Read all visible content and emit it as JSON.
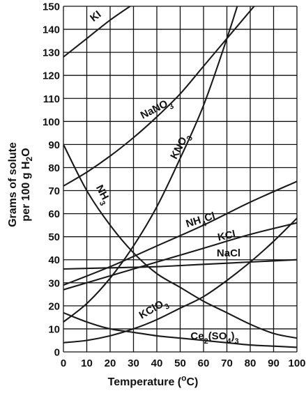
{
  "chart_data": {
    "type": "line",
    "title": "",
    "xlabel": "Temperature (",
    "xlabel_unit": "o",
    "xlabel_tail": "C)",
    "ylabel_line1": "Grams of solute",
    "ylabel_line2_prefix": "per 100 g H",
    "ylabel_line2_sub": "2",
    "ylabel_line2_suffix": "O",
    "xlim": [
      0,
      100
    ],
    "ylim": [
      0,
      150
    ],
    "x_ticks": [
      0,
      10,
      20,
      30,
      40,
      50,
      60,
      70,
      80,
      90,
      100
    ],
    "y_ticks": [
      0,
      10,
      20,
      30,
      40,
      50,
      60,
      70,
      80,
      90,
      100,
      110,
      120,
      130,
      140,
      150
    ],
    "grid": true,
    "line_color": "#1a1a1a",
    "series": [
      {
        "name": "KI",
        "label_main": "KI",
        "label_sub": "",
        "label_tail": "",
        "x": [
          0,
          10,
          20,
          30
        ],
        "y": [
          128,
          136,
          144,
          151
        ]
      },
      {
        "name": "NaNO3",
        "label_main": "NaNO",
        "label_sub": "3",
        "label_tail": "",
        "x": [
          0,
          10,
          20,
          30,
          40,
          50,
          60,
          70,
          80,
          90
        ],
        "y": [
          72,
          78,
          85,
          93,
          102,
          112,
          124,
          136,
          148,
          160
        ]
      },
      {
        "name": "KNO3",
        "label_main": "KNO",
        "label_sub": "3",
        "label_tail": "",
        "x": [
          0,
          10,
          20,
          30,
          40,
          50,
          60,
          70,
          80
        ],
        "y": [
          13,
          21,
          32,
          46,
          63,
          84,
          107,
          136,
          168
        ]
      },
      {
        "name": "NH3",
        "label_main": "NH",
        "label_sub": "3",
        "label_tail": "",
        "x": [
          0,
          10,
          20,
          30,
          40,
          50,
          60,
          70,
          80,
          90,
          100
        ],
        "y": [
          90,
          70,
          55,
          43,
          34,
          28,
          22,
          17,
          12,
          8,
          6
        ]
      },
      {
        "name": "NH4Cl",
        "label_main": "NH",
        "label_sub": "4",
        "label_tail": "Cl",
        "x": [
          0,
          20,
          40,
          60,
          80,
          100
        ],
        "y": [
          29,
          37,
          46,
          55,
          65,
          74
        ]
      },
      {
        "name": "KCl",
        "label_main": "KCl",
        "label_sub": "",
        "label_tail": "",
        "x": [
          0,
          20,
          40,
          60,
          80,
          100
        ],
        "y": [
          27,
          33,
          39,
          45,
          51,
          56
        ]
      },
      {
        "name": "NaCl",
        "label_main": "NaCl",
        "label_sub": "",
        "label_tail": "",
        "x": [
          0,
          20,
          40,
          60,
          80,
          100
        ],
        "y": [
          36,
          36.5,
          37,
          38,
          39,
          40
        ]
      },
      {
        "name": "KClO3",
        "label_main": "KClO",
        "label_sub": "3",
        "label_tail": "",
        "x": [
          0,
          10,
          20,
          30,
          40,
          50,
          60,
          70,
          80,
          90,
          100
        ],
        "y": [
          4,
          5,
          7,
          10,
          14,
          19,
          24,
          31,
          39,
          48,
          58
        ]
      },
      {
        "name": "Ce2(SO4)3",
        "label_main": "Ce",
        "label_sub": "2",
        "label_tail": "(SO",
        "label_sub2": "4",
        "label_tail2": ")",
        "label_sub3": "3",
        "x": [
          0,
          10,
          20,
          30,
          40,
          50,
          60,
          70,
          80,
          90,
          100
        ],
        "y": [
          17,
          13,
          10,
          8.5,
          7,
          6,
          5,
          4,
          3,
          2.5,
          2
        ]
      }
    ]
  }
}
